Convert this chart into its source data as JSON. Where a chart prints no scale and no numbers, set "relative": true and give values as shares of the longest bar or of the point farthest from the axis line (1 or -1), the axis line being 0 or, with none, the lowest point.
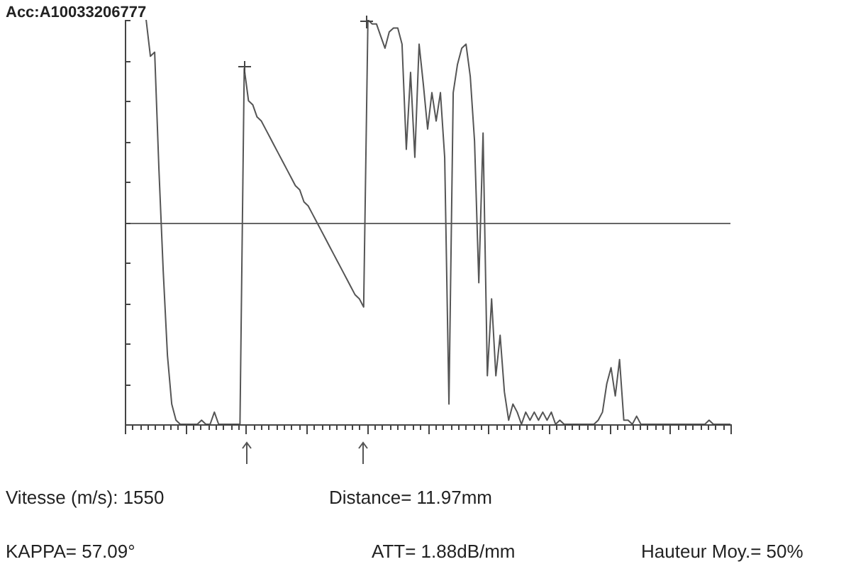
{
  "chart_data": {
    "type": "line",
    "title": "Acc:A10033206777",
    "relative": true,
    "categories": [
      null,
      null,
      null,
      null,
      null,
      null,
      null,
      null,
      null,
      null,
      null,
      null,
      null,
      null,
      null,
      null,
      null,
      null,
      null,
      null,
      null,
      null,
      null,
      null,
      null,
      null,
      null,
      null,
      null,
      null,
      null,
      null,
      null,
      null,
      null,
      null,
      null,
      null,
      null,
      null,
      null,
      null,
      null,
      null,
      null,
      null,
      null,
      null,
      null,
      null,
      null,
      null,
      null,
      null,
      null,
      null,
      null,
      null,
      null,
      null,
      null,
      null,
      null,
      null,
      null,
      null,
      null,
      null,
      null,
      null,
      null,
      null,
      null,
      null,
      null,
      null,
      null,
      null,
      null,
      null,
      null,
      null,
      null,
      null,
      null,
      null,
      null,
      null,
      null,
      null,
      null,
      null,
      null,
      null,
      null,
      null,
      null,
      null,
      null,
      null,
      null,
      null,
      null,
      null,
      null,
      null,
      null,
      null,
      null,
      null,
      null,
      null,
      null,
      null,
      null,
      null,
      null,
      null,
      null,
      null,
      null,
      null,
      null,
      null,
      null,
      null,
      null,
      null,
      null,
      null,
      null,
      null,
      null,
      null,
      null,
      null,
      null,
      null,
      null,
      null,
      null,
      null,
      null
    ],
    "series": [
      {
        "color": "#555555",
        "values": [
          null,
          null,
          null,
          null,
          null,
          1.0,
          0.91,
          0.92,
          0.63,
          0.38,
          0.17,
          0.05,
          0.01,
          0,
          0,
          0,
          0,
          0,
          0.01,
          0,
          0,
          0.03,
          0,
          0,
          0,
          0,
          0,
          0,
          0.88,
          0.8,
          0.79,
          0.76,
          0.75,
          0.73,
          0.71,
          0.69,
          0.67,
          0.65,
          0.63,
          0.61,
          0.59,
          0.58,
          0.55,
          0.54,
          0.52,
          0.5,
          0.48,
          0.46,
          0.44,
          0.42,
          0.4,
          0.38,
          0.36,
          0.34,
          0.32,
          0.31,
          0.29,
          1.0,
          0.99,
          0.99,
          0.96,
          0.93,
          0.97,
          0.98,
          0.98,
          0.94,
          0.68,
          0.87,
          0.66,
          0.94,
          0.84,
          0.73,
          0.82,
          0.75,
          0.82,
          0.66,
          0.05,
          0.82,
          0.89,
          0.93,
          0.94,
          0.86,
          0.7,
          0.35,
          0.72,
          0.12,
          0.31,
          0.12,
          0.22,
          0.08,
          0.01,
          0.05,
          0.03,
          0,
          0.03,
          0.01,
          0.03,
          0.01,
          0.03,
          0.01,
          0.03,
          0,
          0.01,
          0,
          0,
          0,
          0,
          0,
          0,
          0,
          0,
          0.01,
          0.03,
          0.1,
          0.14,
          0.07,
          0.16,
          0.01,
          0.01,
          0,
          0.02,
          0,
          0,
          0,
          0,
          0,
          0,
          0,
          0,
          0,
          0,
          0,
          0,
          0,
          0,
          0,
          0,
          0.01,
          0,
          0,
          0,
          0,
          0
        ]
      }
    ],
    "ref_lines": [
      {
        "axis": "y",
        "value": 0.5,
        "color": "#666666"
      }
    ],
    "annotations": [
      "Vitesse (m/s): 1550",
      "Distance= 11.97mm",
      "KAPPA= 57.09°",
      "ATT= 1.88dB/mm",
      "Hauteur Moy.= 50%"
    ]
  }
}
